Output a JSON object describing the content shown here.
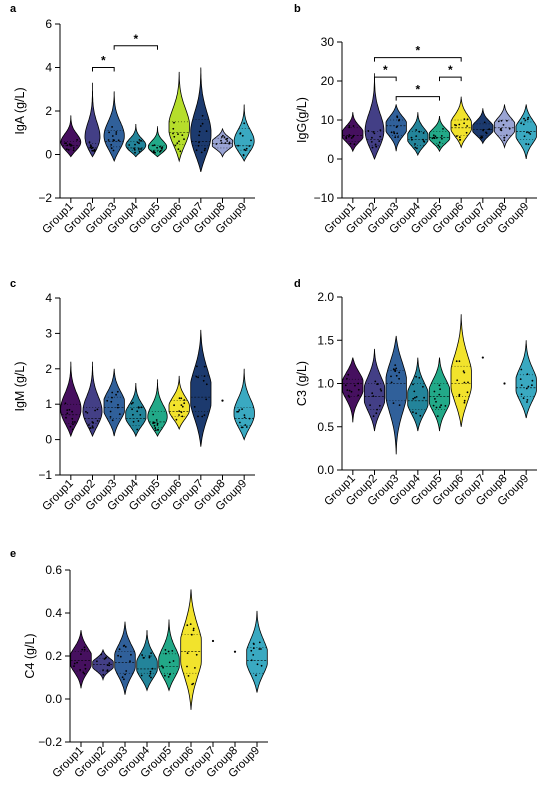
{
  "chart_data": [
    {
      "id": "a",
      "letter": "a",
      "type": "violin",
      "ylabel": "IgA (g/L)",
      "ylim": [
        -2,
        6
      ],
      "yticks": [
        -2,
        0,
        2,
        4,
        6
      ],
      "categories": [
        "Group1",
        "Group2",
        "Group3",
        "Group4",
        "Group5",
        "Group6",
        "Group7",
        "Group8",
        "Group9"
      ],
      "colors": [
        "#46105f",
        "#433f86",
        "#30609a",
        "#23849a",
        "#22a988",
        "#b6de2b",
        "#1c3a6e",
        "#9aa4d4",
        "#3aa9c1"
      ],
      "groups": [
        {
          "min": -0.1,
          "max": 1.8,
          "median": 0.4,
          "q1": 0.25,
          "q3": 0.6
        },
        {
          "min": -0.1,
          "max": 3.3,
          "median": 0.3,
          "q1": 0.2,
          "q3": 0.5
        },
        {
          "min": -0.3,
          "max": 2.9,
          "median": 0.6,
          "q1": 0.35,
          "q3": 1.1
        },
        {
          "min": -0.1,
          "max": 1.4,
          "median": 0.3,
          "q1": 0.2,
          "q3": 0.6
        },
        {
          "min": -0.1,
          "max": 1.3,
          "median": 0.2,
          "q1": 0.15,
          "q3": 0.4
        },
        {
          "min": -0.3,
          "max": 3.8,
          "median": 1.0,
          "q1": 0.45,
          "q3": 1.5
        },
        {
          "min": -0.8,
          "max": 4.0,
          "median": 0.6,
          "q1": 0.4,
          "q3": 1.6
        },
        {
          "min": -0.1,
          "max": 1.2,
          "median": 0.5,
          "q1": 0.3,
          "q3": 0.75
        },
        {
          "min": -0.3,
          "max": 2.3,
          "median": 0.4,
          "q1": 0.2,
          "q3": 1.2
        }
      ],
      "significance": [
        {
          "from": "Group2",
          "to": "Group3",
          "label": "*",
          "y": 4.0
        },
        {
          "from": "Group3",
          "to": "Group5",
          "label": "*",
          "y": 5.0
        }
      ]
    },
    {
      "id": "b",
      "letter": "b",
      "type": "violin",
      "ylabel": "IgG(g/L)",
      "ylim": [
        -10,
        30
      ],
      "yticks": [
        -10,
        0,
        10,
        20,
        30
      ],
      "categories": [
        "Group1",
        "Group2",
        "Group3",
        "Group4",
        "Group5",
        "Group6",
        "Group7",
        "Group8",
        "Group9"
      ],
      "colors": [
        "#46105f",
        "#433f86",
        "#30609a",
        "#23849a",
        "#22a988",
        "#f2e32c",
        "#1c3a6e",
        "#9aa4d4",
        "#3aa9c1"
      ],
      "groups": [
        {
          "min": 2,
          "max": 12,
          "median": 6,
          "q1": 4.5,
          "q3": 8
        },
        {
          "min": 0,
          "max": 22,
          "median": 5,
          "q1": 3.5,
          "q3": 7
        },
        {
          "min": 2,
          "max": 14,
          "median": 8.5,
          "q1": 6,
          "q3": 10
        },
        {
          "min": 1,
          "max": 12,
          "median": 5,
          "q1": 3.5,
          "q3": 7
        },
        {
          "min": 2,
          "max": 11,
          "median": 5.5,
          "q1": 4,
          "q3": 7
        },
        {
          "min": 3,
          "max": 16,
          "median": 8,
          "q1": 6,
          "q3": 10
        },
        {
          "min": 4,
          "max": 13,
          "median": 7.5,
          "q1": 6,
          "q3": 9
        },
        {
          "min": 3,
          "max": 14,
          "median": 8,
          "q1": 6,
          "q3": 10
        },
        {
          "min": 0,
          "max": 14,
          "median": 7,
          "q1": 5,
          "q3": 9.5
        }
      ],
      "significance": [
        {
          "from": "Group2",
          "to": "Group6",
          "label": "*",
          "y": 26
        },
        {
          "from": "Group2",
          "to": "Group3",
          "label": "*",
          "y": 21
        },
        {
          "from": "Group5",
          "to": "Group6",
          "label": "*",
          "y": 21
        },
        {
          "from": "Group3",
          "to": "Group5",
          "label": "*",
          "y": 16
        }
      ]
    },
    {
      "id": "c",
      "letter": "c",
      "type": "violin",
      "ylabel": "IgM (g/L)",
      "ylim": [
        -1,
        4
      ],
      "yticks": [
        -1,
        0,
        1,
        2,
        3,
        4
      ],
      "categories": [
        "Group1",
        "Group2",
        "Group3",
        "Group4",
        "Group5",
        "Group6",
        "Group7",
        "Group8",
        "Group9"
      ],
      "colors": [
        "#46105f",
        "#433f86",
        "#30609a",
        "#23849a",
        "#22a988",
        "#f2e32c",
        "#1c3a6e",
        "#9aa4d4",
        "#3aa9c1"
      ],
      "groups": [
        {
          "min": 0.1,
          "max": 2.2,
          "median": 0.7,
          "q1": 0.45,
          "q3": 1.0
        },
        {
          "min": 0.1,
          "max": 2.2,
          "median": 0.6,
          "q1": 0.45,
          "q3": 0.9
        },
        {
          "min": 0.1,
          "max": 2.0,
          "median": 0.9,
          "q1": 0.6,
          "q3": 1.2
        },
        {
          "min": 0.1,
          "max": 1.6,
          "median": 0.6,
          "q1": 0.4,
          "q3": 0.9
        },
        {
          "min": 0.1,
          "max": 1.7,
          "median": 0.5,
          "q1": 0.35,
          "q3": 0.8
        },
        {
          "min": 0.3,
          "max": 1.8,
          "median": 0.8,
          "q1": 0.65,
          "q3": 1.1
        },
        {
          "min": -0.2,
          "max": 3.1,
          "median": 1.2,
          "q1": 0.8,
          "q3": 1.8
        },
        {
          "point": 1.1
        },
        {
          "min": 0.0,
          "max": 2.0,
          "median": 0.6,
          "q1": 0.4,
          "q3": 0.9
        }
      ],
      "significance": []
    },
    {
      "id": "d",
      "letter": "d",
      "type": "violin",
      "ylabel": "C3 (g/L)",
      "ylim": [
        0.0,
        2.0
      ],
      "yticks": [
        0.0,
        0.5,
        1.0,
        1.5,
        2.0
      ],
      "categories": [
        "Group1",
        "Group2",
        "Group3",
        "Group4",
        "Group5",
        "Group6",
        "Group7",
        "Group8",
        "Group9"
      ],
      "colors": [
        "#46105f",
        "#433f86",
        "#30609a",
        "#23849a",
        "#22a988",
        "#f2e32c",
        "#1c3a6e",
        "#9aa4d4",
        "#3aa9c1"
      ],
      "groups": [
        {
          "min": 0.55,
          "max": 1.3,
          "median": 1.0,
          "q1": 0.85,
          "q3": 1.05
        },
        {
          "min": 0.45,
          "max": 1.4,
          "median": 0.85,
          "q1": 0.7,
          "q3": 1.0
        },
        {
          "min": 0.18,
          "max": 1.55,
          "median": 1.0,
          "q1": 0.8,
          "q3": 1.15
        },
        {
          "min": 0.45,
          "max": 1.3,
          "median": 0.8,
          "q1": 0.7,
          "q3": 1.0
        },
        {
          "min": 0.45,
          "max": 1.3,
          "median": 0.85,
          "q1": 0.7,
          "q3": 1.0
        },
        {
          "min": 0.5,
          "max": 1.8,
          "median": 1.0,
          "q1": 0.85,
          "q3": 1.2
        },
        {
          "point": 1.3
        },
        {
          "point": 1.0
        },
        {
          "min": 0.6,
          "max": 1.5,
          "median": 0.95,
          "q1": 0.85,
          "q3": 1.1
        }
      ],
      "significance": []
    },
    {
      "id": "e",
      "letter": "e",
      "type": "violin",
      "ylabel": "C4 (g/L)",
      "ylim": [
        -0.2,
        0.6
      ],
      "yticks": [
        -0.2,
        0.0,
        0.2,
        0.4,
        0.6
      ],
      "categories": [
        "Group1",
        "Group2",
        "Group3",
        "Group4",
        "Group5",
        "Group6",
        "Group7",
        "Group8",
        "Group9"
      ],
      "colors": [
        "#46105f",
        "#433f86",
        "#30609a",
        "#23849a",
        "#22a988",
        "#f2e32c",
        "#1c3a6e",
        "#9aa4d4",
        "#3aa9c1"
      ],
      "groups": [
        {
          "min": 0.05,
          "max": 0.32,
          "median": 0.18,
          "q1": 0.13,
          "q3": 0.22
        },
        {
          "min": 0.09,
          "max": 0.23,
          "median": 0.16,
          "q1": 0.13,
          "q3": 0.19
        },
        {
          "min": 0.02,
          "max": 0.36,
          "median": 0.17,
          "q1": 0.12,
          "q3": 0.22
        },
        {
          "min": 0.04,
          "max": 0.32,
          "median": 0.14,
          "q1": 0.12,
          "q3": 0.2
        },
        {
          "min": 0.04,
          "max": 0.37,
          "median": 0.15,
          "q1": 0.12,
          "q3": 0.21
        },
        {
          "min": -0.05,
          "max": 0.51,
          "median": 0.22,
          "q1": 0.12,
          "q3": 0.3
        },
        {
          "point": 0.27
        },
        {
          "point": 0.22
        },
        {
          "min": 0.03,
          "max": 0.41,
          "median": 0.18,
          "q1": 0.12,
          "q3": 0.24
        }
      ],
      "significance": []
    }
  ]
}
